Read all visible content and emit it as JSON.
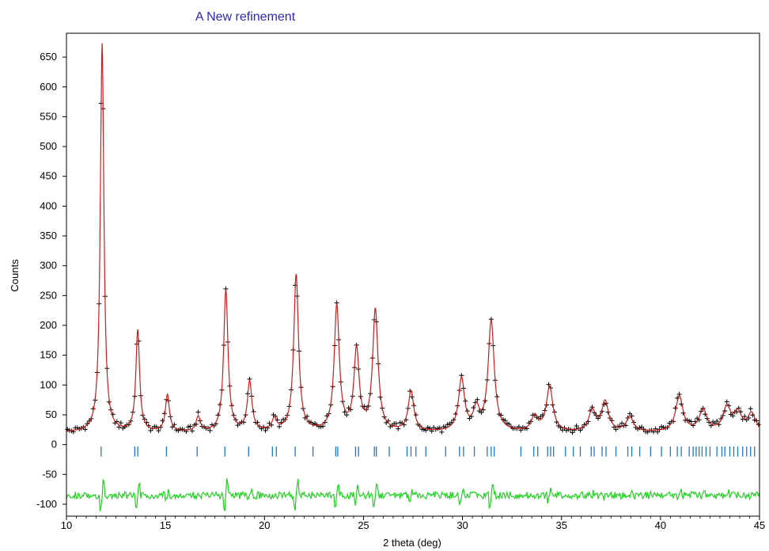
{
  "chart_data": {
    "type": "line",
    "title": "A New refinement",
    "xlabel": "2 theta (deg)",
    "ylabel": "Counts",
    "xlim": [
      10,
      45
    ],
    "ylim": [
      -120,
      690
    ],
    "x_ticks": [
      10,
      15,
      20,
      25,
      30,
      35,
      40,
      45
    ],
    "y_ticks": [
      -100,
      -50,
      0,
      50,
      100,
      150,
      200,
      250,
      300,
      350,
      400,
      450,
      500,
      550,
      600,
      650
    ],
    "grid": false,
    "legend": "none",
    "colors": {
      "title": "#2a2ab8",
      "observed": "#000000",
      "calculated": "#c81e1e",
      "reflections": "#1e78d2",
      "difference": "#1ed21e"
    },
    "background": 20,
    "peaks": [
      {
        "x": 11.8,
        "y": 672
      },
      {
        "x": 13.6,
        "y": 190
      },
      {
        "x": 15.1,
        "y": 82
      },
      {
        "x": 16.65,
        "y": 45
      },
      {
        "x": 18.05,
        "y": 258
      },
      {
        "x": 19.25,
        "y": 103
      },
      {
        "x": 20.5,
        "y": 40
      },
      {
        "x": 21.6,
        "y": 283
      },
      {
        "x": 23.65,
        "y": 230
      },
      {
        "x": 24.65,
        "y": 155
      },
      {
        "x": 25.6,
        "y": 223
      },
      {
        "x": 27.4,
        "y": 87
      },
      {
        "x": 29.95,
        "y": 108
      },
      {
        "x": 30.7,
        "y": 55
      },
      {
        "x": 31.45,
        "y": 205
      },
      {
        "x": 33.65,
        "y": 45
      },
      {
        "x": 34.4,
        "y": 95
      },
      {
        "x": 36.55,
        "y": 55
      },
      {
        "x": 37.2,
        "y": 70
      },
      {
        "x": 38.45,
        "y": 45
      },
      {
        "x": 40.95,
        "y": 80
      },
      {
        "x": 42.15,
        "y": 57
      },
      {
        "x": 43.35,
        "y": 60
      },
      {
        "x": 43.9,
        "y": 50
      },
      {
        "x": 44.6,
        "y": 50
      }
    ],
    "reflection_y": [
      -20,
      -3
    ],
    "reflections": [
      11.75,
      13.45,
      13.6,
      15.05,
      16.6,
      18.0,
      19.2,
      20.4,
      20.6,
      21.55,
      22.45,
      23.6,
      23.7,
      24.6,
      24.75,
      25.55,
      25.65,
      26.3,
      27.2,
      27.4,
      27.65,
      28.15,
      29.15,
      29.85,
      30.05,
      30.6,
      31.25,
      31.45,
      31.6,
      32.95,
      33.6,
      33.8,
      34.3,
      34.45,
      34.6,
      35.2,
      35.6,
      35.95,
      36.5,
      36.65,
      37.05,
      37.25,
      37.75,
      38.35,
      38.55,
      38.95,
      39.5,
      40.05,
      40.5,
      40.85,
      41.05,
      41.45,
      41.65,
      41.8,
      41.95,
      42.1,
      42.3,
      42.5,
      42.85,
      43.1,
      43.25,
      43.5,
      43.7,
      43.9,
      44.15,
      44.35,
      44.55,
      44.75
    ],
    "difference_offset": -85
  }
}
